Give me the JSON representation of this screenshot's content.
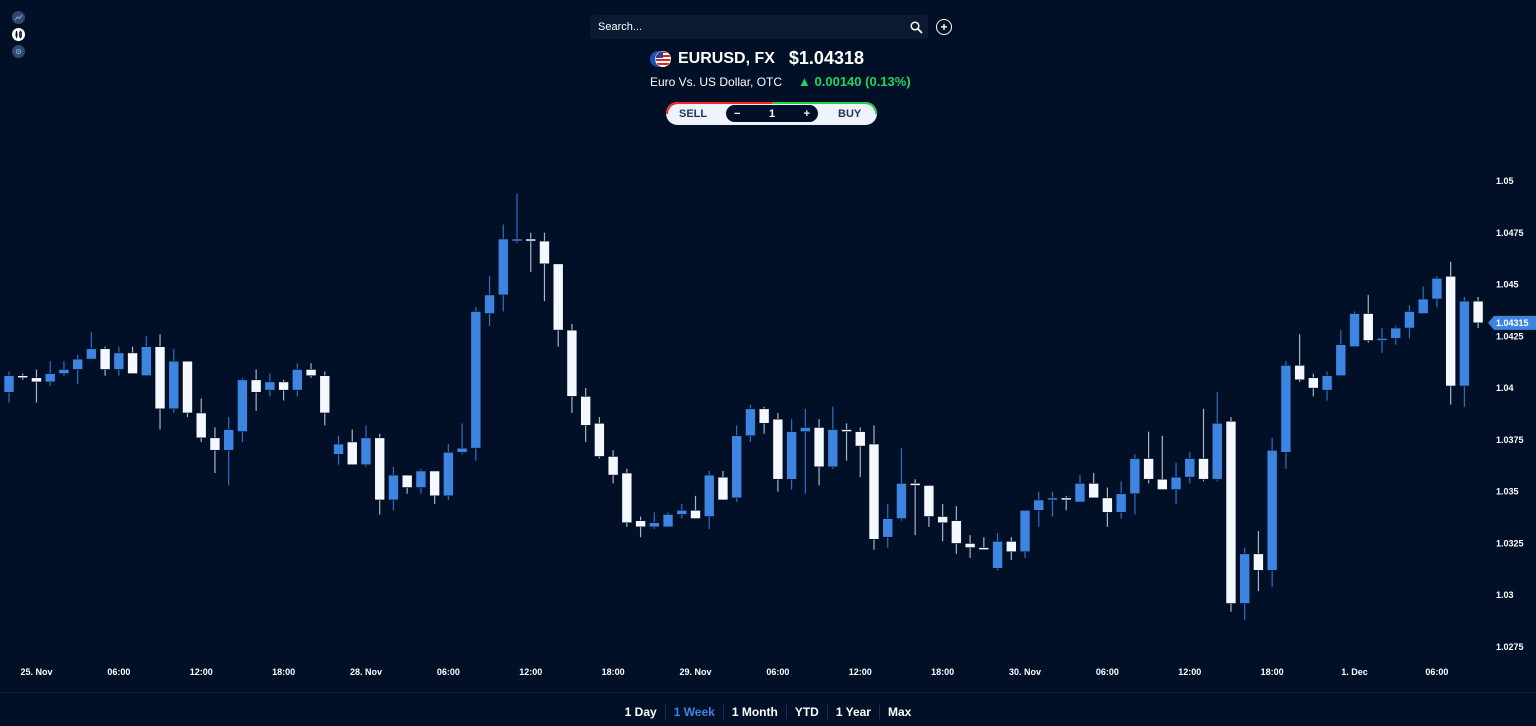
{
  "toolbar": {
    "icons": [
      "line-chart-icon",
      "candlestick-icon",
      "settings-icon"
    ],
    "active_icon": "candlestick-icon"
  },
  "search": {
    "placeholder": "Search...",
    "value": ""
  },
  "instrument": {
    "symbol": "EURUSD, FX",
    "price": "$1.04318",
    "name": "Euro Vs. US Dollar, OTC",
    "change": "▲ 0.00140 (0.13%)",
    "change_color": "#1fd65f"
  },
  "trade": {
    "sell_label": "SELL",
    "buy_label": "BUY",
    "minus": "−",
    "plus": "+",
    "quantity": "1"
  },
  "ranges": [
    {
      "label": "1 Day",
      "active": false
    },
    {
      "label": "1 Week",
      "active": true
    },
    {
      "label": "1 Month",
      "active": false
    },
    {
      "label": "YTD",
      "active": false
    },
    {
      "label": "1 Year",
      "active": false
    },
    {
      "label": "Max",
      "active": false
    }
  ],
  "colors": {
    "background": "#011027",
    "up": "#3d85e0",
    "down": "#f5f9ff",
    "accent": "#3d85e0"
  },
  "chart_data": {
    "type": "candlestick",
    "ylim": [
      1.0265,
      1.0505
    ],
    "y_ticks": [
      "1.05",
      "1.0475",
      "1.045",
      "1.0425",
      "1.04",
      "1.0375",
      "1.035",
      "1.0325",
      "1.03",
      "1.0275"
    ],
    "x_ticks": [
      "25. Nov",
      "06:00",
      "12:00",
      "18:00",
      "28. Nov",
      "06:00",
      "12:00",
      "18:00",
      "29. Nov",
      "06:00",
      "12:00",
      "18:00",
      "30. Nov",
      "06:00",
      "12:00",
      "18:00",
      "1. Dec",
      "06:00"
    ],
    "last_price_label": "1.04315",
    "grid": false,
    "ohlc": [
      [
        1.0398,
        1.0408,
        1.0393,
        1.0406
      ],
      [
        1.0406,
        1.0407,
        1.0404,
        1.0405
      ],
      [
        1.0405,
        1.0409,
        1.0393,
        1.0403
      ],
      [
        1.0403,
        1.0413,
        1.0401,
        1.0407
      ],
      [
        1.0407,
        1.0413,
        1.0406,
        1.0409
      ],
      [
        1.0409,
        1.0416,
        1.0402,
        1.0414
      ],
      [
        1.0414,
        1.0427,
        1.0414,
        1.0419
      ],
      [
        1.0419,
        1.042,
        1.0406,
        1.0409
      ],
      [
        1.0409,
        1.042,
        1.0406,
        1.0417
      ],
      [
        1.0417,
        1.042,
        1.0407,
        1.0407
      ],
      [
        1.0406,
        1.0425,
        1.0406,
        1.042
      ],
      [
        1.042,
        1.0426,
        1.038,
        1.039
      ],
      [
        1.039,
        1.0419,
        1.0388,
        1.0413
      ],
      [
        1.0413,
        1.0413,
        1.0386,
        1.0388
      ],
      [
        1.0388,
        1.0395,
        1.0374,
        1.0376
      ],
      [
        1.0376,
        1.0381,
        1.0359,
        1.037
      ],
      [
        1.037,
        1.0386,
        1.0353,
        1.038
      ],
      [
        1.0379,
        1.0405,
        1.0374,
        1.0404
      ],
      [
        1.0404,
        1.0409,
        1.0389,
        1.0398
      ],
      [
        1.0399,
        1.0407,
        1.0396,
        1.0403
      ],
      [
        1.0403,
        1.0404,
        1.0394,
        1.0399
      ],
      [
        1.0399,
        1.0412,
        1.0396,
        1.0409
      ],
      [
        1.0409,
        1.0412,
        1.0405,
        1.0406
      ],
      [
        1.0406,
        1.0408,
        1.0382,
        1.0388
      ],
      [
        1.0368,
        1.0377,
        1.0363,
        1.0373
      ],
      [
        1.0374,
        1.038,
        1.0363,
        1.0363
      ],
      [
        1.0363,
        1.0382,
        1.0362,
        1.0376
      ],
      [
        1.0376,
        1.0378,
        1.0339,
        1.0346
      ],
      [
        1.0346,
        1.0362,
        1.0341,
        1.0358
      ],
      [
        1.0358,
        1.0358,
        1.0349,
        1.0352
      ],
      [
        1.0352,
        1.0361,
        1.0349,
        1.036
      ],
      [
        1.036,
        1.036,
        1.0344,
        1.0348
      ],
      [
        1.0348,
        1.0373,
        1.0346,
        1.0369
      ],
      [
        1.0369,
        1.0383,
        1.0368,
        1.0371
      ],
      [
        1.0371,
        1.0439,
        1.0365,
        1.0437
      ],
      [
        1.0436,
        1.0454,
        1.043,
        1.0445
      ],
      [
        1.0445,
        1.0479,
        1.0437,
        1.0472
      ],
      [
        1.0471,
        1.0494,
        1.047,
        1.0472
      ],
      [
        1.0472,
        1.0475,
        1.0456,
        1.0471
      ],
      [
        1.0471,
        1.0475,
        1.0442,
        1.046
      ],
      [
        1.046,
        1.046,
        1.042,
        1.0428
      ],
      [
        1.0428,
        1.0431,
        1.0388,
        1.0396
      ],
      [
        1.0396,
        1.04,
        1.0374,
        1.0382
      ],
      [
        1.0383,
        1.0386,
        1.0366,
        1.0367
      ],
      [
        1.0367,
        1.037,
        1.0354,
        1.0358
      ],
      [
        1.0359,
        1.0361,
        1.0333,
        1.0335
      ],
      [
        1.0336,
        1.0338,
        1.0328,
        1.0333
      ],
      [
        1.0333,
        1.034,
        1.0332,
        1.0335
      ],
      [
        1.0333,
        1.034,
        1.0333,
        1.0339
      ],
      [
        1.0339,
        1.0344,
        1.0337,
        1.0341
      ],
      [
        1.0341,
        1.0348,
        1.0337,
        1.0337
      ],
      [
        1.0338,
        1.036,
        1.0332,
        1.0358
      ],
      [
        1.0357,
        1.036,
        1.0346,
        1.0346
      ],
      [
        1.0347,
        1.0382,
        1.0345,
        1.0377
      ],
      [
        1.0377,
        1.0392,
        1.0374,
        1.039
      ],
      [
        1.039,
        1.0391,
        1.0378,
        1.0383
      ],
      [
        1.0385,
        1.0388,
        1.035,
        1.0356
      ],
      [
        1.0356,
        1.0385,
        1.0351,
        1.0379
      ],
      [
        1.0379,
        1.039,
        1.0349,
        1.0381
      ],
      [
        1.0381,
        1.0385,
        1.0353,
        1.0362
      ],
      [
        1.0362,
        1.0391,
        1.0361,
        1.038
      ],
      [
        1.038,
        1.0383,
        1.0365,
        1.0379
      ],
      [
        1.0379,
        1.0381,
        1.0357,
        1.0372
      ],
      [
        1.0373,
        1.0382,
        1.0322,
        1.0327
      ],
      [
        1.0328,
        1.0344,
        1.0323,
        1.0337
      ],
      [
        1.0337,
        1.0371,
        1.0336,
        1.0354
      ],
      [
        1.0354,
        1.0356,
        1.0329,
        1.0353
      ],
      [
        1.0353,
        1.0353,
        1.0333,
        1.0338
      ],
      [
        1.0338,
        1.0344,
        1.0326,
        1.0335
      ],
      [
        1.0336,
        1.0343,
        1.032,
        1.0325
      ],
      [
        1.0325,
        1.0329,
        1.0318,
        1.0323
      ],
      [
        1.0323,
        1.0328,
        1.0322,
        1.0322
      ],
      [
        1.0313,
        1.033,
        1.0312,
        1.0326
      ],
      [
        1.0326,
        1.0328,
        1.0317,
        1.0321
      ],
      [
        1.0321,
        1.0341,
        1.0318,
        1.0341
      ],
      [
        1.0341,
        1.035,
        1.0333,
        1.0346
      ],
      [
        1.0346,
        1.035,
        1.0338,
        1.0347
      ],
      [
        1.0347,
        1.0348,
        1.0341,
        1.0346
      ],
      [
        1.0345,
        1.0358,
        1.0345,
        1.0354
      ],
      [
        1.0354,
        1.0359,
        1.0347,
        1.0347
      ],
      [
        1.0347,
        1.0352,
        1.0333,
        1.034
      ],
      [
        1.034,
        1.0355,
        1.0337,
        1.0349
      ],
      [
        1.0349,
        1.0368,
        1.0339,
        1.0366
      ],
      [
        1.0366,
        1.0379,
        1.0354,
        1.0356
      ],
      [
        1.0356,
        1.0377,
        1.0351,
        1.0351
      ],
      [
        1.0351,
        1.0364,
        1.0344,
        1.0357
      ],
      [
        1.0357,
        1.0369,
        1.0354,
        1.0366
      ],
      [
        1.0366,
        1.039,
        1.0355,
        1.0356
      ],
      [
        1.0356,
        1.0398,
        1.0355,
        1.0383
      ],
      [
        1.0384,
        1.0386,
        1.0292,
        1.0296
      ],
      [
        1.0296,
        1.0323,
        1.0288,
        1.032
      ],
      [
        1.032,
        1.0331,
        1.0302,
        1.0312
      ],
      [
        1.0312,
        1.0376,
        1.0304,
        1.037
      ],
      [
        1.0369,
        1.0413,
        1.0361,
        1.0411
      ],
      [
        1.0411,
        1.0426,
        1.0403,
        1.0404
      ],
      [
        1.0405,
        1.0407,
        1.0396,
        1.04
      ],
      [
        1.0399,
        1.0408,
        1.0394,
        1.0406
      ],
      [
        1.0406,
        1.0428,
        1.0406,
        1.0421
      ],
      [
        1.042,
        1.0437,
        1.042,
        1.0436
      ],
      [
        1.0436,
        1.0445,
        1.0422,
        1.0423
      ],
      [
        1.0423,
        1.0429,
        1.0417,
        1.0424
      ],
      [
        1.0424,
        1.043,
        1.0421,
        1.0429
      ],
      [
        1.0429,
        1.044,
        1.0424,
        1.0437
      ],
      [
        1.0436,
        1.0449,
        1.0436,
        1.0443
      ],
      [
        1.0443,
        1.0454,
        1.0439,
        1.0453
      ],
      [
        1.0454,
        1.0461,
        1.0392,
        1.0401
      ],
      [
        1.0401,
        1.0444,
        1.0391,
        1.0442
      ],
      [
        1.0442,
        1.0444,
        1.0429,
        1.04315
      ]
    ]
  }
}
